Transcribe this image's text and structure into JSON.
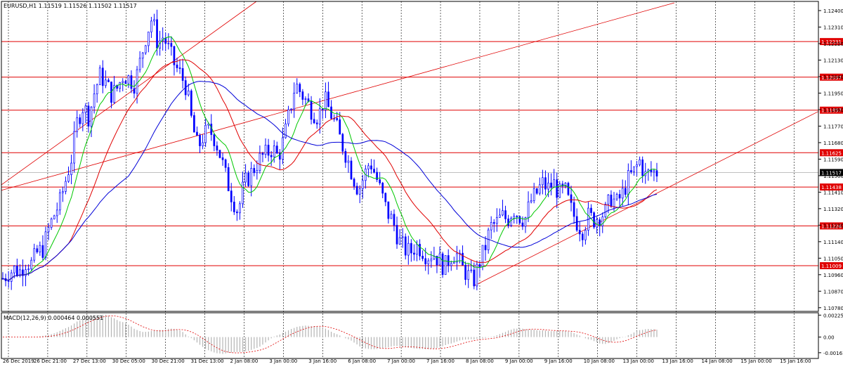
{
  "header": {
    "title": "EURUSD,H1  1.11519 1.11526 1.11502 1.11517"
  },
  "macd": {
    "title": "MACD(12,26,9) 0.000464 0.000551"
  },
  "colors": {
    "bg": "#ffffff",
    "candle": "#0000ff",
    "ma_fast": "#00c800",
    "ma_mid": "#e00000",
    "ma_slow": "#0000d8",
    "level": "#e00000",
    "grid": "#000000",
    "label_bg": "#e00000",
    "price_label_bg": "#000000"
  },
  "chart_data": [
    {
      "type": "candlestick",
      "name": "EURUSD,H1",
      "ylim": [
        1.1076,
        1.1245
      ],
      "price_ticks": [
        "1.12400",
        "1.12310",
        "1.12220",
        "1.12130",
        "1.12040",
        "1.11950",
        "1.11860",
        "1.11770",
        "1.11680",
        "1.11590",
        "1.11500",
        "1.11410",
        "1.11320",
        "1.11230",
        "1.11140",
        "1.11050",
        "1.10960",
        "1.10870",
        "1.10780"
      ],
      "time_ticks": [
        "26 Dec 2019",
        "26 Dec 21:00",
        "27 Dec 13:00",
        "30 Dec 05:00",
        "30 Dec 21:00",
        "31 Dec 13:00",
        "2 Jan 08:00",
        "3 Jan 00:00",
        "3 Jan 16:00",
        "6 Jan 08:00",
        "7 Jan 00:00",
        "7 Jan 16:00",
        "8 Jan 08:00",
        "9 Jan 00:00",
        "9 Jan 16:00",
        "10 Jan 08:00",
        "13 Jan 00:00",
        "13 Jan 16:00",
        "14 Jan 08:00",
        "15 Jan 00:00",
        "15 Jan 16:00"
      ],
      "close_path": [
        1.1094,
        1.1097,
        1.1099,
        1.1098,
        1.1103,
        1.1102,
        1.1108,
        1.111,
        1.1121,
        1.1129,
        1.1136,
        1.1148,
        1.116,
        1.118,
        1.1188,
        1.1182,
        1.1196,
        1.1205,
        1.12,
        1.1194,
        1.1198,
        1.1205,
        1.1203,
        1.12,
        1.1213,
        1.1227,
        1.1236,
        1.1222,
        1.1226,
        1.1218,
        1.121,
        1.1205,
        1.1198,
        1.1178,
        1.1165,
        1.1172,
        1.1175,
        1.117,
        1.116,
        1.1148,
        1.1138,
        1.113,
        1.1145,
        1.115,
        1.1155,
        1.116,
        1.1162,
        1.1165,
        1.116,
        1.117,
        1.1185,
        1.12,
        1.1195,
        1.119,
        1.1185,
        1.1182,
        1.1192,
        1.1185,
        1.1178,
        1.1168,
        1.116,
        1.115,
        1.1142,
        1.115,
        1.1158,
        1.115,
        1.114,
        1.113,
        1.1125,
        1.1115,
        1.111,
        1.1108,
        1.1112,
        1.111,
        1.1106,
        1.1108,
        1.1104,
        1.11,
        1.1106,
        1.1108,
        1.11,
        1.1096,
        1.1092,
        1.1102,
        1.111,
        1.1122,
        1.1124,
        1.1128,
        1.1126,
        1.1132,
        1.1128,
        1.1126,
        1.1136,
        1.114,
        1.1146,
        1.1143,
        1.1146,
        1.114,
        1.1142,
        1.1132,
        1.1125,
        1.112,
        1.1128,
        1.1126,
        1.1128,
        1.113,
        1.1138,
        1.1135,
        1.114,
        1.1148,
        1.1152,
        1.1158,
        1.115,
        1.1152,
        1.1152
      ],
      "indicators": [
        {
          "name": "MA fast",
          "lag": 3
        },
        {
          "name": "MA mid",
          "lag": 8
        },
        {
          "name": "MA slow",
          "lag": 15
        }
      ],
      "levels": [
        {
          "value": 1.12231,
          "label": "1.12231"
        },
        {
          "value": 1.12037,
          "label": "1.12037"
        },
        {
          "value": 1.11857,
          "label": "1.11857"
        },
        {
          "value": 1.11625,
          "label": "1.11625"
        },
        {
          "value": 1.11438,
          "label": "1.11438"
        },
        {
          "value": 1.11226,
          "label": "1.11226"
        },
        {
          "value": 1.11009,
          "label": "1.11009"
        }
      ],
      "current_price": {
        "value": 1.11517,
        "label": "1.11517"
      }
    },
    {
      "type": "histogram",
      "name": "MACD(12,26,9)",
      "ylim": [
        -0.0022,
        0.0025
      ],
      "ticks": [
        {
          "value": 0.002258,
          "label": "0.002258"
        },
        {
          "value": 0.0,
          "label": "0.00"
        },
        {
          "value": -0.00161,
          "label": "-0.00161"
        }
      ]
    }
  ]
}
